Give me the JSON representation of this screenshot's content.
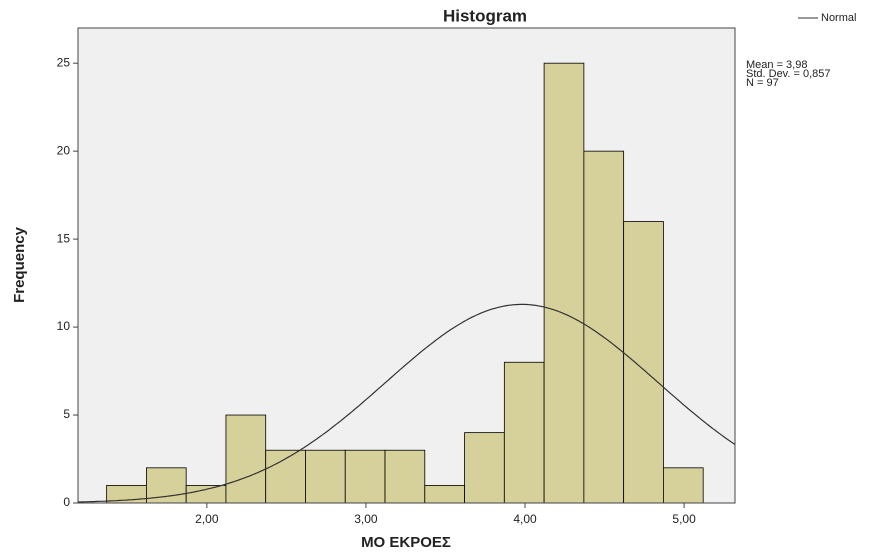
{
  "chart_data": {
    "type": "histogram",
    "title": "Histogram",
    "x_label": "ΜΟ ΕΚΡΟΕΣ",
    "y_label": "Frequency",
    "bins": [
      1.37,
      1.62,
      1.87,
      2.12,
      2.37,
      2.62,
      2.87,
      3.12,
      3.37,
      3.62,
      3.87,
      4.12,
      4.37,
      4.62,
      4.87,
      5.12
    ],
    "counts": [
      1,
      2,
      1,
      5,
      3,
      3,
      3,
      3,
      1,
      4,
      8,
      25,
      20,
      16,
      2
    ],
    "color": "#d6d09a",
    "edge_color": "#000000",
    "xlim": [
      1.19,
      5.32
    ],
    "ylim": [
      0,
      27
    ],
    "xticks": [
      {
        "value": 2,
        "label": "2,00"
      },
      {
        "value": 3,
        "label": "3,00"
      },
      {
        "value": 4,
        "label": "4,00"
      },
      {
        "value": 5,
        "label": "5,00"
      }
    ],
    "yticks": [
      0,
      5,
      10,
      15,
      20,
      25
    ],
    "normal": {
      "name": "Normal",
      "color": "#333333",
      "mean": {
        "value": 3.98,
        "label": "Mean = 3,98"
      },
      "sd": {
        "value": 0.857,
        "label": "Std. Dev. = 0,857"
      },
      "n": {
        "value": 97,
        "label": "N = 97"
      }
    }
  }
}
